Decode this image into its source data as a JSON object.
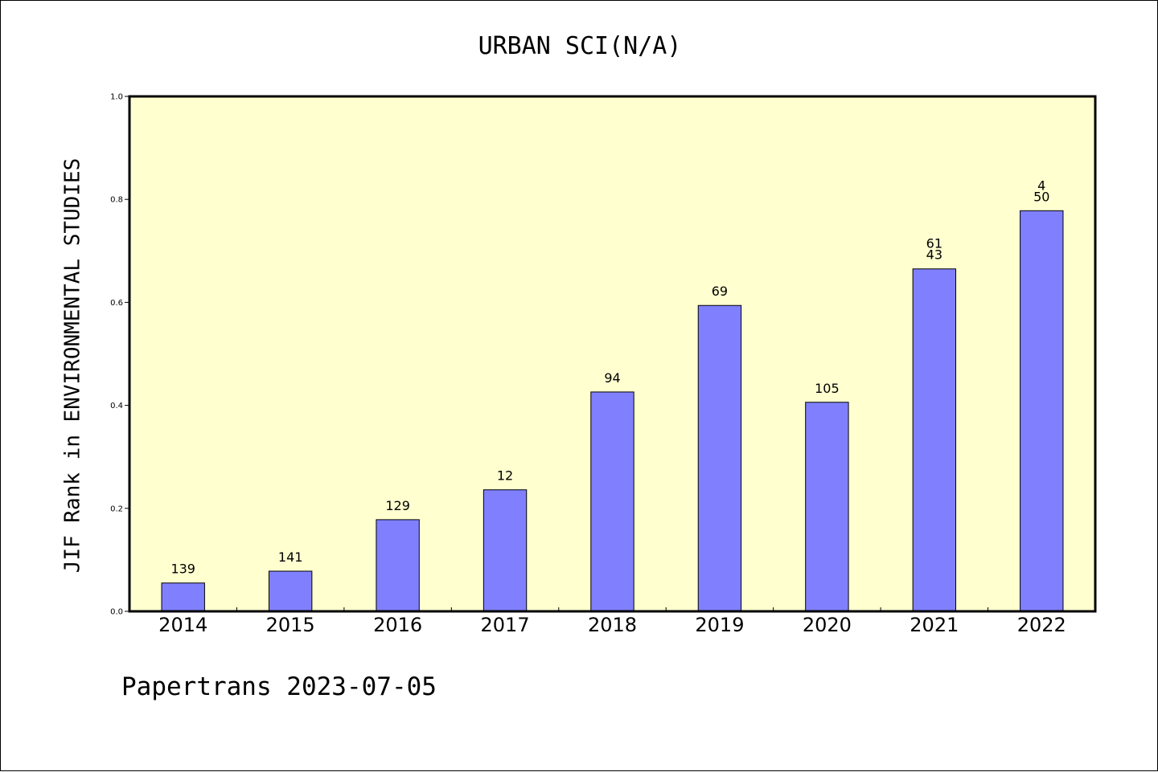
{
  "chart_data": {
    "type": "bar",
    "title": "URBAN SCI(N/A)",
    "ylabel": "JIF Rank in ENVIRONMENTAL STUDIES",
    "xlabel": "",
    "categories": [
      "2014",
      "2015",
      "2016",
      "2017",
      "2018",
      "2019",
      "2020",
      "2021",
      "2022"
    ],
    "values": [
      0.055,
      0.078,
      0.178,
      0.236,
      0.426,
      0.594,
      0.406,
      0.665,
      0.778
    ],
    "data_labels": [
      [
        "139"
      ],
      [
        "141"
      ],
      [
        "129"
      ],
      [
        "12"
      ],
      [
        "94"
      ],
      [
        "69"
      ],
      [
        "105"
      ],
      [
        "61",
        "43"
      ],
      [
        "4",
        "50"
      ]
    ],
    "ylim": [
      0,
      1.0
    ],
    "yticks": [
      "0.0",
      "0.2",
      "0.4",
      "0.6",
      "0.8",
      "1.0"
    ],
    "grid": false,
    "legend": "none",
    "colors": {
      "bar": "#8080ff",
      "plot_background": "#ffffd0"
    }
  },
  "footer": "Papertrans 2023-07-05"
}
